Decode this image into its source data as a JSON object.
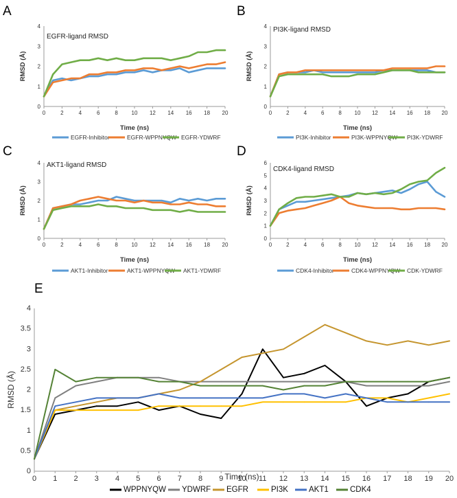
{
  "chart_data": [
    {
      "panel": "A",
      "type": "line",
      "title": "EGFR-ligand RMSD",
      "xlabel": "Time (ns)",
      "ylabel": "RMSD (Å)",
      "xlim": [
        0,
        20
      ],
      "ylim": [
        0,
        4
      ],
      "xticks": [
        0,
        2,
        4,
        6,
        8,
        10,
        12,
        14,
        16,
        18,
        20
      ],
      "yticks": [
        0,
        1,
        2,
        3,
        4
      ],
      "legend_position": "bottom",
      "grid": false,
      "series": [
        {
          "name": "EGFR-Inhibitor",
          "color": "#5b9bd5",
          "x": [
            0,
            1,
            2,
            3,
            4,
            5,
            6,
            7,
            8,
            9,
            10,
            11,
            12,
            13,
            14,
            15,
            16,
            17,
            18,
            19,
            20
          ],
          "y": [
            0.5,
            1.3,
            1.4,
            1.3,
            1.4,
            1.5,
            1.5,
            1.6,
            1.6,
            1.7,
            1.7,
            1.8,
            1.7,
            1.8,
            1.8,
            1.9,
            1.7,
            1.8,
            1.9,
            1.9,
            1.9
          ]
        },
        {
          "name": "EGFR-WPPNYQW",
          "color": "#ed7d31",
          "x": [
            0,
            1,
            2,
            3,
            4,
            5,
            6,
            7,
            8,
            9,
            10,
            11,
            12,
            13,
            14,
            15,
            16,
            17,
            18,
            19,
            20
          ],
          "y": [
            0.5,
            1.2,
            1.3,
            1.4,
            1.4,
            1.6,
            1.6,
            1.7,
            1.7,
            1.8,
            1.8,
            1.9,
            1.9,
            1.8,
            1.9,
            2.0,
            1.9,
            2.0,
            2.1,
            2.1,
            2.2
          ]
        },
        {
          "name": "EGFR-YDWRF",
          "color": "#70ad47",
          "x": [
            0,
            1,
            2,
            3,
            4,
            5,
            6,
            7,
            8,
            9,
            10,
            11,
            12,
            13,
            14,
            15,
            16,
            17,
            18,
            19,
            20
          ],
          "y": [
            0.5,
            1.6,
            2.1,
            2.2,
            2.3,
            2.3,
            2.4,
            2.3,
            2.4,
            2.3,
            2.3,
            2.4,
            2.4,
            2.4,
            2.3,
            2.4,
            2.5,
            2.7,
            2.7,
            2.8,
            2.8
          ]
        }
      ]
    },
    {
      "panel": "B",
      "type": "line",
      "title": "PI3K-ligand RMSD",
      "xlabel": "Time (ns)",
      "ylabel": "RMSD (Å)",
      "xlim": [
        0,
        20
      ],
      "ylim": [
        0,
        4
      ],
      "xticks": [
        0,
        2,
        4,
        6,
        8,
        10,
        12,
        14,
        16,
        18,
        20
      ],
      "yticks": [
        0,
        1,
        2,
        3,
        4
      ],
      "legend_position": "bottom",
      "grid": false,
      "series": [
        {
          "name": "PI3K-Inhibitor",
          "color": "#5b9bd5",
          "x": [
            0,
            1,
            2,
            3,
            4,
            5,
            6,
            7,
            8,
            9,
            10,
            11,
            12,
            13,
            14,
            15,
            16,
            17,
            18,
            19,
            20
          ],
          "y": [
            0.5,
            1.6,
            1.7,
            1.7,
            1.7,
            1.8,
            1.7,
            1.7,
            1.7,
            1.7,
            1.7,
            1.7,
            1.7,
            1.8,
            1.8,
            1.8,
            1.8,
            1.8,
            1.8,
            1.7,
            1.7
          ]
        },
        {
          "name": "PI3K-WPPNYQW",
          "color": "#ed7d31",
          "x": [
            0,
            1,
            2,
            3,
            4,
            5,
            6,
            7,
            8,
            9,
            10,
            11,
            12,
            13,
            14,
            15,
            16,
            17,
            18,
            19,
            20
          ],
          "y": [
            0.5,
            1.6,
            1.7,
            1.7,
            1.8,
            1.8,
            1.8,
            1.8,
            1.8,
            1.8,
            1.8,
            1.8,
            1.8,
            1.8,
            1.9,
            1.9,
            1.9,
            1.9,
            1.9,
            2.0,
            2.0
          ]
        },
        {
          "name": "PI3K-YDWRF",
          "color": "#70ad47",
          "x": [
            0,
            1,
            2,
            3,
            4,
            5,
            6,
            7,
            8,
            9,
            10,
            11,
            12,
            13,
            14,
            15,
            16,
            17,
            18,
            19,
            20
          ],
          "y": [
            0.5,
            1.5,
            1.6,
            1.6,
            1.6,
            1.6,
            1.6,
            1.5,
            1.5,
            1.5,
            1.6,
            1.6,
            1.6,
            1.7,
            1.8,
            1.8,
            1.8,
            1.7,
            1.7,
            1.7,
            1.7
          ]
        }
      ]
    },
    {
      "panel": "C",
      "type": "line",
      "title": "AKT1-ligand RMSD",
      "xlabel": "Time (ns)",
      "ylabel": "RMSD (Å)",
      "xlim": [
        0,
        20
      ],
      "ylim": [
        0,
        4
      ],
      "xticks": [
        0,
        2,
        4,
        6,
        8,
        10,
        12,
        14,
        16,
        18,
        20
      ],
      "yticks": [
        0,
        1,
        2,
        3,
        4
      ],
      "legend_position": "bottom",
      "grid": false,
      "series": [
        {
          "name": "AKT1-Inhibitor",
          "color": "#5b9bd5",
          "x": [
            0,
            1,
            2,
            3,
            4,
            5,
            6,
            7,
            8,
            9,
            10,
            11,
            12,
            13,
            14,
            15,
            16,
            17,
            18,
            19,
            20
          ],
          "y": [
            0.5,
            1.6,
            1.7,
            1.8,
            1.8,
            1.9,
            2.0,
            2.0,
            2.2,
            2.1,
            2.0,
            2.0,
            2.0,
            2.0,
            1.9,
            2.1,
            2.0,
            2.1,
            2.0,
            2.1,
            2.1
          ]
        },
        {
          "name": "AKT1-WPPNYQW",
          "color": "#ed7d31",
          "x": [
            0,
            1,
            2,
            3,
            4,
            5,
            6,
            7,
            8,
            9,
            10,
            11,
            12,
            13,
            14,
            15,
            16,
            17,
            18,
            19,
            20
          ],
          "y": [
            0.5,
            1.6,
            1.7,
            1.8,
            2.0,
            2.1,
            2.2,
            2.1,
            2.0,
            2.0,
            1.9,
            2.0,
            1.9,
            1.9,
            1.8,
            1.8,
            1.9,
            1.8,
            1.8,
            1.7,
            1.7
          ]
        },
        {
          "name": "AKT1-YDWRF",
          "color": "#70ad47",
          "x": [
            0,
            1,
            2,
            3,
            4,
            5,
            6,
            7,
            8,
            9,
            10,
            11,
            12,
            13,
            14,
            15,
            16,
            17,
            18,
            19,
            20
          ],
          "y": [
            0.5,
            1.5,
            1.6,
            1.7,
            1.7,
            1.7,
            1.8,
            1.7,
            1.7,
            1.6,
            1.6,
            1.6,
            1.5,
            1.5,
            1.5,
            1.4,
            1.5,
            1.4,
            1.4,
            1.4,
            1.4
          ]
        }
      ]
    },
    {
      "panel": "D",
      "type": "line",
      "title": "CDK4-ligand RMSD",
      "xlabel": "Time (ns)",
      "ylabel": "RMSD (Å)",
      "xlim": [
        0,
        20
      ],
      "ylim": [
        0,
        6
      ],
      "xticks": [
        0,
        2,
        4,
        6,
        8,
        10,
        12,
        14,
        16,
        18,
        20
      ],
      "yticks": [
        0,
        1,
        2,
        3,
        4,
        5,
        6
      ],
      "legend_position": "bottom",
      "grid": false,
      "series": [
        {
          "name": "CDK4-Inhibitor",
          "color": "#5b9bd5",
          "x": [
            0,
            1,
            2,
            3,
            4,
            5,
            6,
            7,
            8,
            9,
            10,
            11,
            12,
            13,
            14,
            15,
            16,
            17,
            18,
            19,
            20
          ],
          "y": [
            1.0,
            2.3,
            2.6,
            2.9,
            2.9,
            3.0,
            3.1,
            3.2,
            3.3,
            3.4,
            3.6,
            3.5,
            3.6,
            3.7,
            3.8,
            3.6,
            3.9,
            4.3,
            4.5,
            3.7,
            3.3
          ]
        },
        {
          "name": "CDK4-WPPNYQW",
          "color": "#ed7d31",
          "x": [
            0,
            1,
            2,
            3,
            4,
            5,
            6,
            7,
            8,
            9,
            10,
            11,
            12,
            13,
            14,
            15,
            16,
            17,
            18,
            19,
            20
          ],
          "y": [
            1.0,
            2.0,
            2.2,
            2.3,
            2.4,
            2.6,
            2.8,
            3.0,
            3.3,
            2.8,
            2.6,
            2.5,
            2.4,
            2.4,
            2.4,
            2.3,
            2.3,
            2.4,
            2.4,
            2.4,
            2.3
          ]
        },
        {
          "name": "CDK-YDWRF",
          "color": "#70ad47",
          "x": [
            0,
            1,
            2,
            3,
            4,
            5,
            6,
            7,
            8,
            9,
            10,
            11,
            12,
            13,
            14,
            15,
            16,
            17,
            18,
            19,
            20
          ],
          "y": [
            1.0,
            2.3,
            2.8,
            3.2,
            3.3,
            3.3,
            3.4,
            3.5,
            3.3,
            3.3,
            3.6,
            3.5,
            3.6,
            3.5,
            3.6,
            3.9,
            4.3,
            4.5,
            4.6,
            5.2,
            5.6
          ]
        }
      ]
    },
    {
      "panel": "E",
      "type": "line",
      "title": "",
      "xlabel": "Time (ns)",
      "ylabel": "RMSD (Å)",
      "xlim": [
        0,
        20
      ],
      "ylim": [
        0,
        4
      ],
      "xticks": [
        0,
        1,
        2,
        3,
        4,
        5,
        6,
        7,
        8,
        9,
        10,
        11,
        12,
        13,
        14,
        15,
        16,
        17,
        18,
        19,
        20
      ],
      "yticks": [
        0,
        0.5,
        1,
        1.5,
        2,
        2.5,
        3,
        3.5,
        4
      ],
      "legend_position": "bottom",
      "grid": false,
      "series": [
        {
          "name": "WPPNYQW",
          "color": "#000000",
          "x": [
            0,
            1,
            2,
            3,
            4,
            5,
            6,
            7,
            8,
            9,
            10,
            11,
            12,
            13,
            14,
            15,
            16,
            17,
            18,
            19,
            20
          ],
          "y": [
            0.3,
            1.4,
            1.5,
            1.6,
            1.6,
            1.7,
            1.5,
            1.6,
            1.4,
            1.3,
            1.9,
            3.0,
            2.3,
            2.4,
            2.6,
            2.2,
            1.6,
            1.8,
            1.9,
            2.2,
            2.3
          ]
        },
        {
          "name": "YDWRF",
          "color": "#7f7f7f",
          "x": [
            0,
            1,
            2,
            3,
            4,
            5,
            6,
            7,
            8,
            9,
            10,
            11,
            12,
            13,
            14,
            15,
            16,
            17,
            18,
            19,
            20
          ],
          "y": [
            0.3,
            1.8,
            2.1,
            2.2,
            2.3,
            2.3,
            2.3,
            2.2,
            2.2,
            2.2,
            2.2,
            2.2,
            2.2,
            2.2,
            2.2,
            2.2,
            2.1,
            2.1,
            2.1,
            2.1,
            2.2
          ]
        },
        {
          "name": "EGFR",
          "color": "#c5952e",
          "x": [
            0,
            1,
            2,
            3,
            4,
            5,
            6,
            7,
            8,
            9,
            10,
            11,
            12,
            13,
            14,
            15,
            16,
            17,
            18,
            19,
            20
          ],
          "y": [
            0.3,
            1.5,
            1.6,
            1.7,
            1.8,
            1.8,
            1.9,
            2.0,
            2.2,
            2.5,
            2.8,
            2.9,
            3.0,
            3.3,
            3.6,
            3.4,
            3.2,
            3.1,
            3.2,
            3.1,
            3.2
          ]
        },
        {
          "name": "PI3K",
          "color": "#ffc000",
          "x": [
            0,
            1,
            2,
            3,
            4,
            5,
            6,
            7,
            8,
            9,
            10,
            11,
            12,
            13,
            14,
            15,
            16,
            17,
            18,
            19,
            20
          ],
          "y": [
            0.3,
            1.5,
            1.5,
            1.5,
            1.5,
            1.5,
            1.6,
            1.6,
            1.6,
            1.6,
            1.6,
            1.7,
            1.7,
            1.7,
            1.7,
            1.7,
            1.8,
            1.8,
            1.7,
            1.8,
            1.9
          ]
        },
        {
          "name": "AKT1",
          "color": "#4472c4",
          "x": [
            0,
            1,
            2,
            3,
            4,
            5,
            6,
            7,
            8,
            9,
            10,
            11,
            12,
            13,
            14,
            15,
            16,
            17,
            18,
            19,
            20
          ],
          "y": [
            0.3,
            1.6,
            1.7,
            1.8,
            1.8,
            1.8,
            1.9,
            1.8,
            1.8,
            1.8,
            1.8,
            1.8,
            1.9,
            1.9,
            1.8,
            1.9,
            1.8,
            1.7,
            1.7,
            1.7,
            1.7
          ]
        },
        {
          "name": "CDK4",
          "color": "#548235",
          "x": [
            0,
            1,
            2,
            3,
            4,
            5,
            6,
            7,
            8,
            9,
            10,
            11,
            12,
            13,
            14,
            15,
            16,
            17,
            18,
            19,
            20
          ],
          "y": [
            0.3,
            2.5,
            2.2,
            2.3,
            2.3,
            2.3,
            2.2,
            2.2,
            2.1,
            2.1,
            2.1,
            2.1,
            2.0,
            2.1,
            2.1,
            2.2,
            2.2,
            2.2,
            2.2,
            2.2,
            2.3
          ]
        }
      ]
    }
  ]
}
